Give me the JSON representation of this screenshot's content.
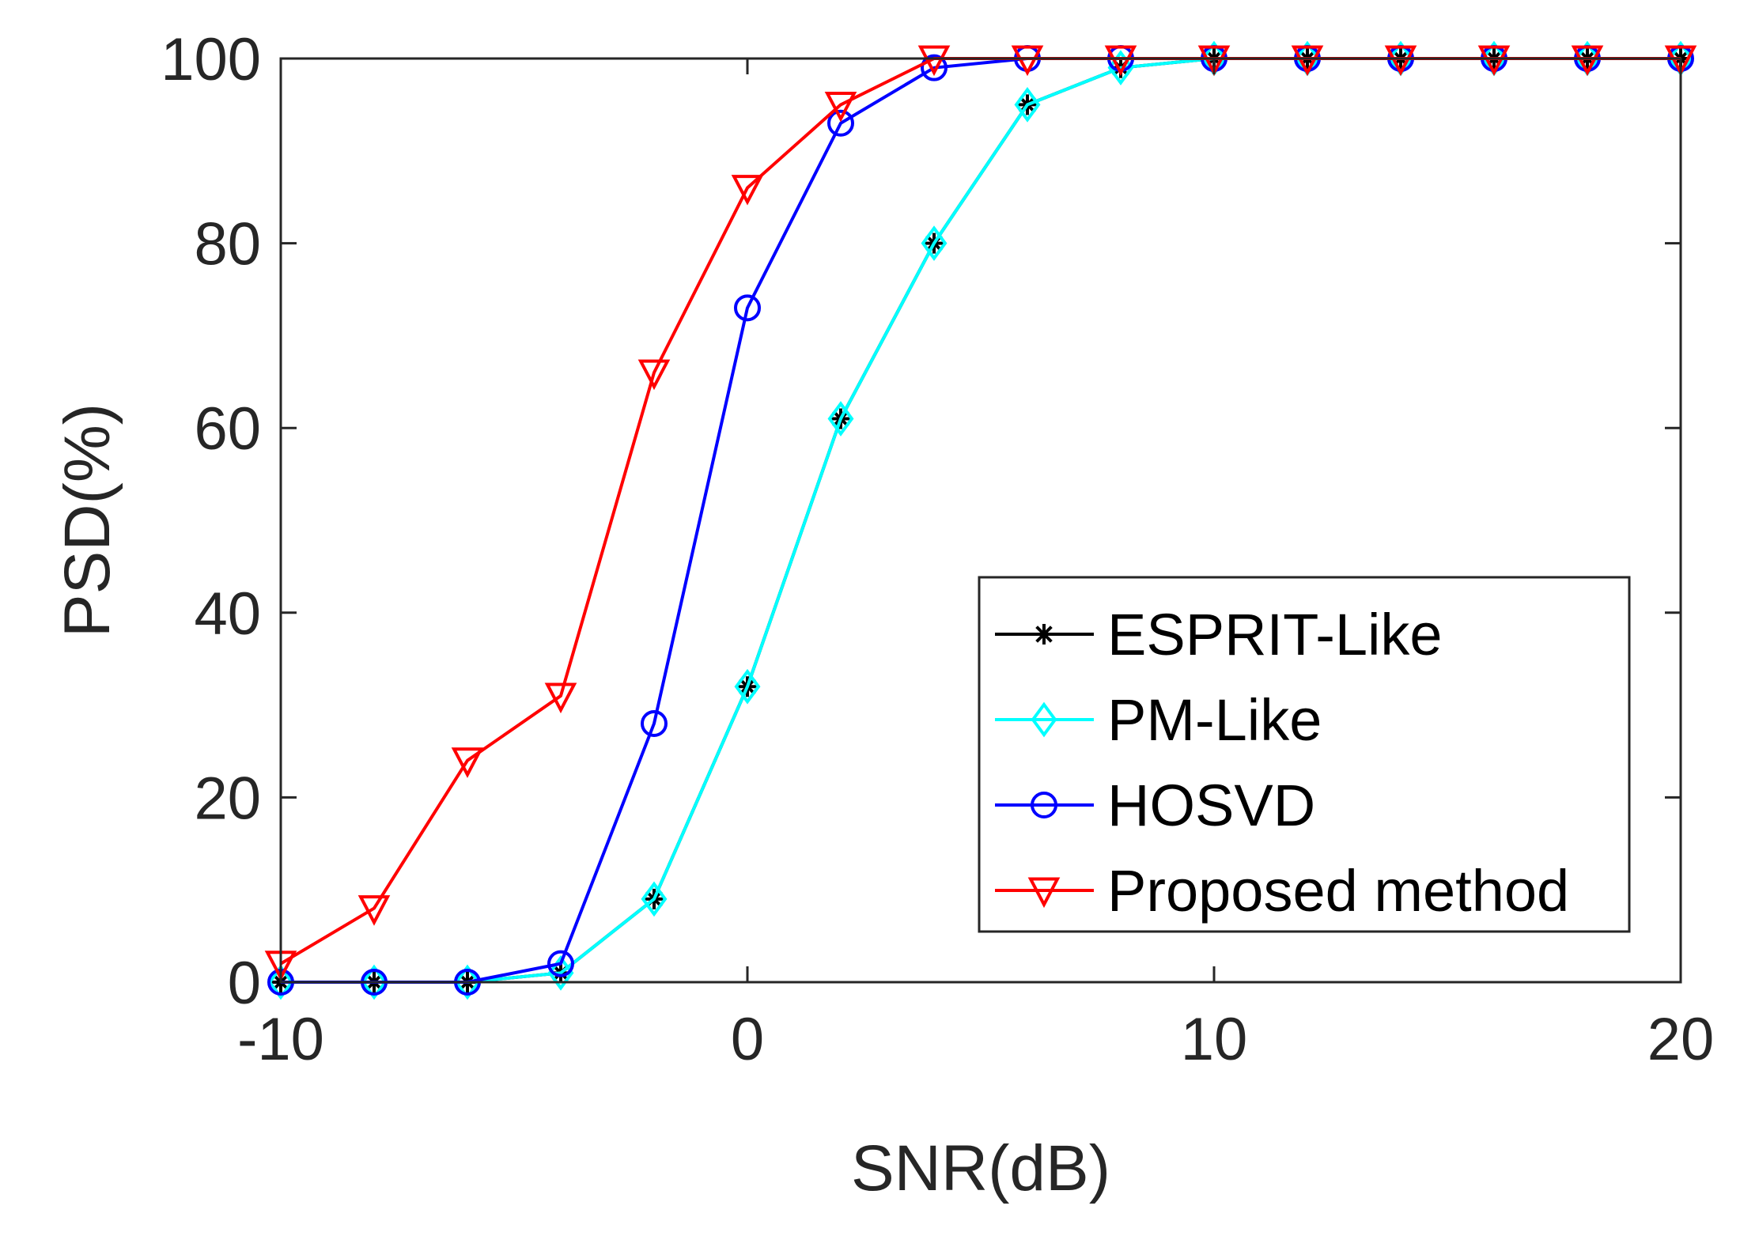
{
  "chart_data": {
    "type": "line",
    "title": "",
    "xlabel": "SNR(dB)",
    "ylabel": "PSD(%)",
    "xlim": [
      -10,
      20
    ],
    "ylim": [
      0,
      100
    ],
    "xticks": [
      -10,
      0,
      10,
      20
    ],
    "yticks": [
      0,
      20,
      40,
      60,
      80,
      100
    ],
    "grid": false,
    "legend_position": "bottom-right",
    "x": [
      -10,
      -8,
      -6,
      -4,
      -2,
      0,
      2,
      4,
      6,
      8,
      10,
      12,
      14,
      16,
      18,
      20
    ],
    "series": [
      {
        "name": "ESPRIT-Like",
        "color": "#000000",
        "marker": "asterisk",
        "values": [
          0,
          0,
          0,
          1,
          9,
          32,
          61,
          80,
          95,
          99,
          100,
          100,
          100,
          100,
          100,
          100
        ]
      },
      {
        "name": "PM-Like",
        "color": "#00ffff",
        "marker": "diamond",
        "values": [
          0,
          0,
          0,
          1,
          9,
          32,
          61,
          80,
          95,
          99,
          100,
          100,
          100,
          100,
          100,
          100
        ]
      },
      {
        "name": "HOSVD",
        "color": "#0000ff",
        "marker": "circle",
        "values": [
          0,
          0,
          0,
          2,
          28,
          73,
          93,
          99,
          100,
          100,
          100,
          100,
          100,
          100,
          100,
          100
        ]
      },
      {
        "name": "Proposed method",
        "color": "#ff0000",
        "marker": "triangle-down",
        "values": [
          2,
          8,
          24,
          31,
          66,
          86,
          95,
          100,
          100,
          100,
          100,
          100,
          100,
          100,
          100,
          100
        ]
      }
    ]
  }
}
